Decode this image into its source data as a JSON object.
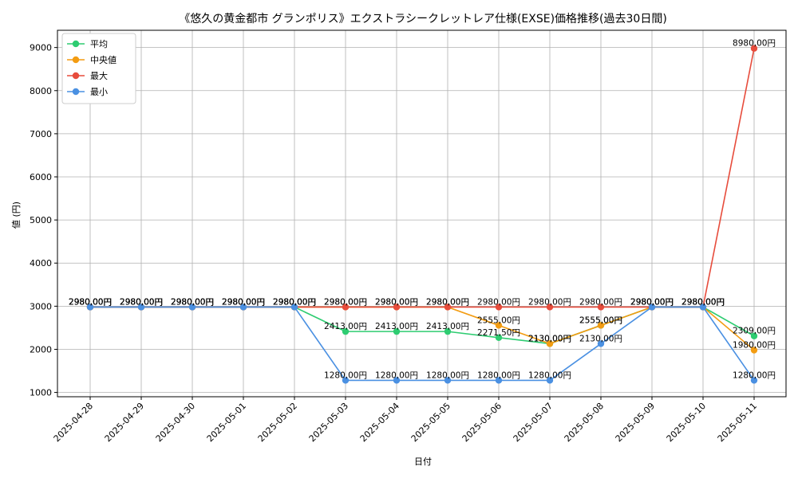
{
  "chart_data": {
    "type": "line",
    "title": "《悠久の黄金都市 グランポリス》エクストラシークレットレア仕様(EXSE)価格推移(過去30日間)",
    "xlabel": "日付",
    "ylabel": "値 (円)",
    "categories": [
      "2025-04-28",
      "2025-04-29",
      "2025-04-30",
      "2025-05-01",
      "2025-05-02",
      "2025-05-03",
      "2025-05-04",
      "2025-05-05",
      "2025-05-06",
      "2025-05-07",
      "2025-05-08",
      "2025-05-09",
      "2025-05-10",
      "2025-05-11"
    ],
    "ylim": [
      900,
      9400
    ],
    "yticks": [
      1000,
      2000,
      3000,
      4000,
      5000,
      6000,
      7000,
      8000,
      9000
    ],
    "grid": true,
    "legend_position": "top-left",
    "label_suffix": "円",
    "series": [
      {
        "name": "平均",
        "color": "#2ecc71",
        "values": [
          2980,
          2980,
          2980,
          2980,
          2980,
          2413,
          2413,
          2413,
          2271.5,
          2130,
          2555,
          2980,
          2980,
          2309
        ]
      },
      {
        "name": "中央値",
        "color": "#f39c12",
        "values": [
          2980,
          2980,
          2980,
          2980,
          2980,
          2980,
          2980,
          2980,
          2555,
          2130,
          2555,
          2980,
          2980,
          1980
        ]
      },
      {
        "name": "最大",
        "color": "#e74c3c",
        "values": [
          2980,
          2980,
          2980,
          2980,
          2980,
          2980,
          2980,
          2980,
          2980,
          2980,
          2980,
          2980,
          2980,
          8980
        ]
      },
      {
        "name": "最小",
        "color": "#4a90e2",
        "values": [
          2980,
          2980,
          2980,
          2980,
          2980,
          1280,
          1280,
          1280,
          1280,
          1280,
          2130,
          2980,
          2980,
          1280
        ]
      }
    ]
  }
}
